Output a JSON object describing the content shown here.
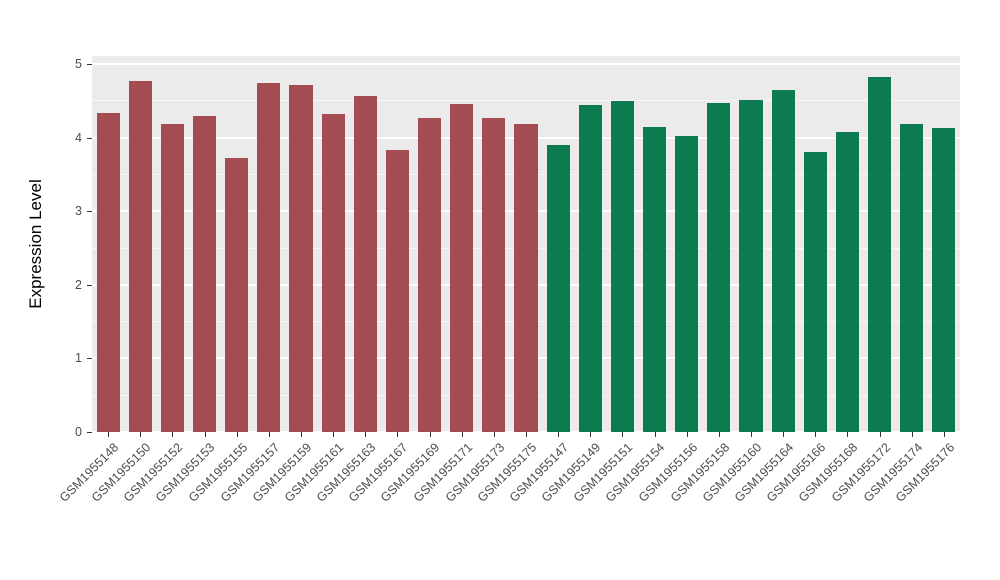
{
  "chart_data": {
    "type": "bar",
    "title": "",
    "xlabel": "",
    "ylabel": "Expression Level",
    "ylim": [
      0,
      5
    ],
    "yticks": [
      0,
      1,
      2,
      3,
      4,
      5
    ],
    "grid": "on",
    "legend": "none",
    "panel_background": "#EBEBEB",
    "gridline_color": "#FFFFFF",
    "axis_text_color": "#4D4D4D",
    "groups": [
      {
        "name": "series-red",
        "color": "#A34C52"
      },
      {
        "name": "series-green",
        "color": "#0C7B50"
      }
    ],
    "bars": [
      {
        "label": "GSM1955148",
        "value": 4.33,
        "group": 0
      },
      {
        "label": "GSM1955150",
        "value": 4.77,
        "group": 0
      },
      {
        "label": "GSM1955152",
        "value": 4.18,
        "group": 0
      },
      {
        "label": "GSM1955153",
        "value": 4.3,
        "group": 0
      },
      {
        "label": "GSM1955155",
        "value": 3.72,
        "group": 0
      },
      {
        "label": "GSM1955157",
        "value": 4.74,
        "group": 0
      },
      {
        "label": "GSM1955159",
        "value": 4.72,
        "group": 0
      },
      {
        "label": "GSM1955161",
        "value": 4.32,
        "group": 0
      },
      {
        "label": "GSM1955163",
        "value": 4.56,
        "group": 0
      },
      {
        "label": "GSM1955167",
        "value": 3.83,
        "group": 0
      },
      {
        "label": "GSM1955169",
        "value": 4.27,
        "group": 0
      },
      {
        "label": "GSM1955171",
        "value": 4.46,
        "group": 0
      },
      {
        "label": "GSM1955173",
        "value": 4.26,
        "group": 0
      },
      {
        "label": "GSM1955175",
        "value": 4.18,
        "group": 0
      },
      {
        "label": "GSM1955147",
        "value": 3.9,
        "group": 1
      },
      {
        "label": "GSM1955149",
        "value": 4.44,
        "group": 1
      },
      {
        "label": "GSM1955151",
        "value": 4.5,
        "group": 1
      },
      {
        "label": "GSM1955154",
        "value": 4.14,
        "group": 1
      },
      {
        "label": "GSM1955156",
        "value": 4.02,
        "group": 1
      },
      {
        "label": "GSM1955158",
        "value": 4.47,
        "group": 1
      },
      {
        "label": "GSM1955160",
        "value": 4.51,
        "group": 1
      },
      {
        "label": "GSM1955164",
        "value": 4.65,
        "group": 1
      },
      {
        "label": "GSM1955166",
        "value": 3.8,
        "group": 1
      },
      {
        "label": "GSM1955168",
        "value": 4.07,
        "group": 1
      },
      {
        "label": "GSM1955172",
        "value": 4.82,
        "group": 1
      },
      {
        "label": "GSM1955174",
        "value": 4.18,
        "group": 1
      },
      {
        "label": "GSM1955176",
        "value": 4.13,
        "group": 1
      }
    ]
  }
}
